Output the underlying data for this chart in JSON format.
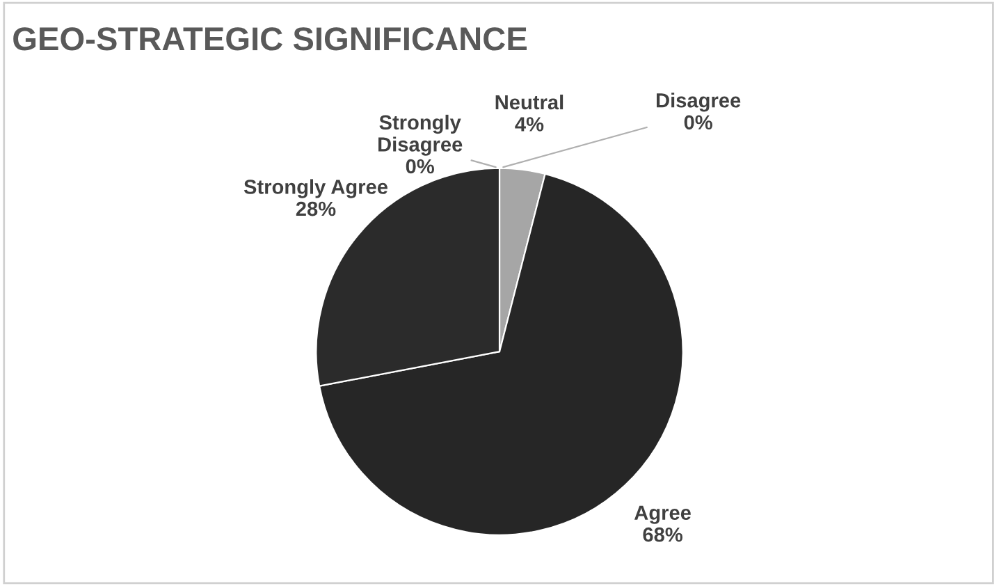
{
  "chart_data": {
    "type": "pie",
    "title": "GEO-STRATEGIC SIGNIFICANCE",
    "categories": [
      "Strongly Disagree",
      "Disagree",
      "Neutral",
      "Agree",
      "Strongly Agree"
    ],
    "values": [
      0,
      0,
      4,
      68,
      28
    ],
    "value_labels": [
      "0%",
      "0%",
      "4%",
      "68%",
      "28%"
    ],
    "colors": [
      "#7f7f7f",
      "#bfbfbf",
      "#a6a6a6",
      "#262626",
      "#2b2b2b"
    ],
    "legend": false
  }
}
